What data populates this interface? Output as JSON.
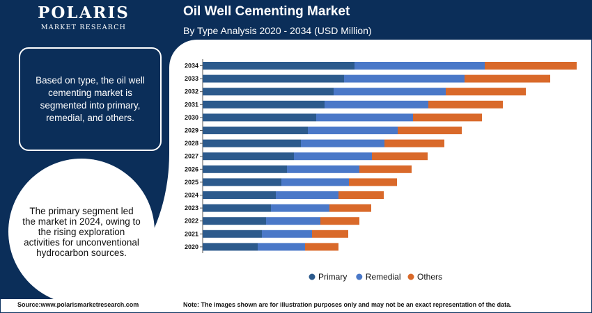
{
  "brand": {
    "name": "POLARIS",
    "subtitle": "MARKET RESEARCH"
  },
  "header": {
    "title": "Oil Well Cementing Market",
    "subtitle": "By Type Analysis 2020 - 2034 (USD Million)"
  },
  "info_box": {
    "text": "Based on type, the oil well cementing market is segmented into primary, remedial, and others."
  },
  "circle_note": {
    "text": "The primary segment led the market in 2024, owing to the rising exploration activities for unconventional hydrocarbon sources."
  },
  "footer": {
    "source": "Source:www.polarismarketresearch.com",
    "note": "Note: The images shown are for illustration purposes only and may not be an exact representation of the data."
  },
  "colors": {
    "primary": "#2c5a8c",
    "remedial": "#4a78c8",
    "others": "#d9692a",
    "navy": "#0b2e59"
  },
  "chart_data": {
    "type": "bar",
    "orientation": "horizontal",
    "stacked": true,
    "categories": [
      "2034",
      "2033",
      "2032",
      "2031",
      "2030",
      "2029",
      "2028",
      "2027",
      "2026",
      "2025",
      "2024",
      "2023",
      "2022",
      "2021",
      "2020"
    ],
    "series": [
      {
        "name": "Primary",
        "values": [
          218,
          203,
          188,
          175,
          163,
          151,
          141,
          131,
          121,
          113,
          105,
          98,
          91,
          85,
          79
        ]
      },
      {
        "name": "Remedial",
        "values": [
          187,
          173,
          161,
          149,
          139,
          129,
          120,
          112,
          104,
          97,
          90,
          84,
          78,
          72,
          68
        ]
      },
      {
        "name": "Others",
        "values": [
          132,
          123,
          115,
          107,
          99,
          92,
          86,
          80,
          75,
          69,
          65,
          60,
          56,
          52,
          48
        ]
      }
    ],
    "xlim": [
      0,
      540
    ],
    "legend_position": "bottom"
  }
}
